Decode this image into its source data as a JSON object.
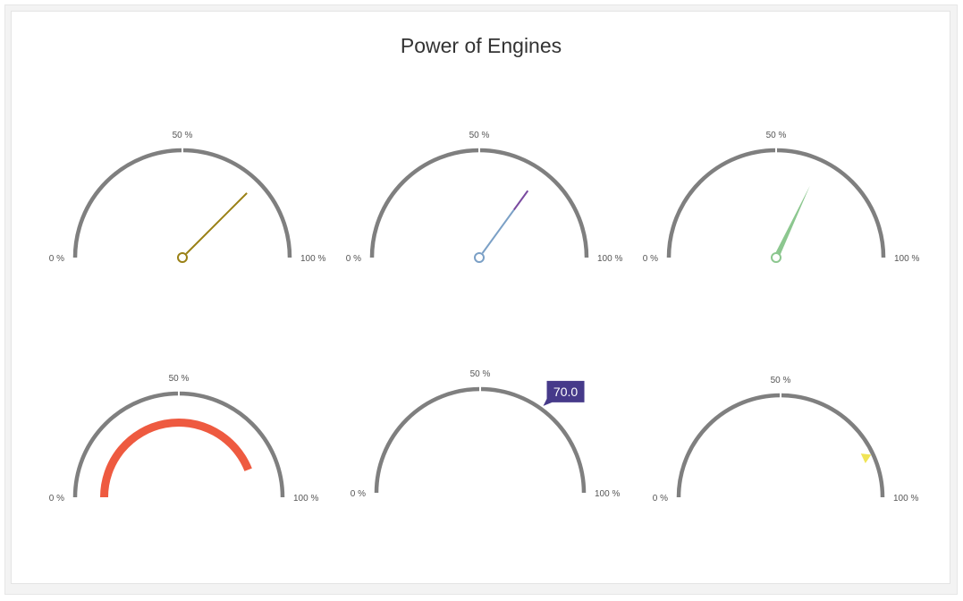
{
  "chart_data": {
    "type": "gauge",
    "title": "Power of Engines",
    "scale": {
      "min": 0,
      "max": 100,
      "unit": "%"
    },
    "tick_labels": {
      "min": "0 %",
      "mid": "50 %",
      "max": "100 %"
    },
    "colors": {
      "track": "#7f7f7f",
      "range_bar": "#ee5a40",
      "tooltip_bg": "#463a8a",
      "marker": "#f0e456"
    },
    "gauges": [
      {
        "indicator": "needle",
        "value": 75,
        "color": "#9a8116"
      },
      {
        "indicator": "twoColorNeedle",
        "value": 70,
        "color": "#7ba0c6",
        "secondColor": "#7a4aa0"
      },
      {
        "indicator": "triangleNeedle",
        "value": 64,
        "color": "#8cc78f"
      },
      {
        "indicator": "rangeBar",
        "value": 88,
        "color": "#ee5a40"
      },
      {
        "indicator": "textCloud",
        "value": 70,
        "text": "70.0",
        "color": "#463a8a"
      },
      {
        "indicator": "triangleMarker",
        "value": 86,
        "color": "#f0e456"
      }
    ]
  }
}
